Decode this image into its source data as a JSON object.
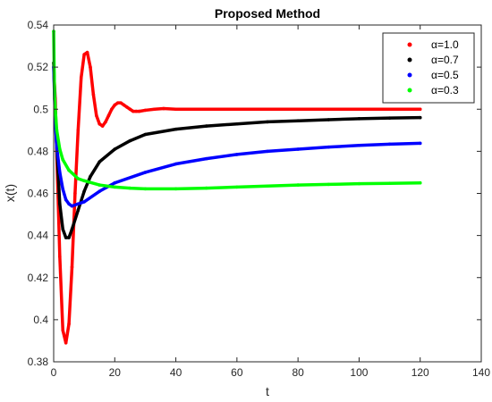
{
  "chart_data": {
    "type": "line",
    "title": "Proposed Method",
    "xlabel": "t",
    "ylabel": "x(t)",
    "xlim": [
      0,
      140
    ],
    "ylim": [
      0.38,
      0.54
    ],
    "xticks": [
      0,
      20,
      40,
      60,
      80,
      100,
      120,
      140
    ],
    "yticks": [
      0.38,
      0.4,
      0.42,
      0.44,
      0.46,
      0.48,
      0.5,
      0.52,
      0.54
    ],
    "xtick_labels": [
      "0",
      "20",
      "40",
      "60",
      "80",
      "100",
      "120",
      "140"
    ],
    "ytick_labels": [
      "0.38",
      "0.4",
      "0.42",
      "0.44",
      "0.46",
      "0.48",
      "0.5",
      "0.52",
      "0.54"
    ],
    "grid": false,
    "legend_position": "top-right",
    "series": [
      {
        "name": "α=1.0",
        "color": "#ff0000",
        "points": [
          [
            0,
            0.52
          ],
          [
            0.5,
            0.505
          ],
          [
            1,
            0.48
          ],
          [
            2,
            0.43
          ],
          [
            3,
            0.395
          ],
          [
            4,
            0.389
          ],
          [
            5,
            0.398
          ],
          [
            6,
            0.425
          ],
          [
            7,
            0.46
          ],
          [
            8,
            0.49
          ],
          [
            9,
            0.515
          ],
          [
            10,
            0.526
          ],
          [
            11,
            0.527
          ],
          [
            12,
            0.52
          ],
          [
            13,
            0.507
          ],
          [
            14,
            0.497
          ],
          [
            15,
            0.493
          ],
          [
            16,
            0.492
          ],
          [
            17,
            0.494
          ],
          [
            18,
            0.497
          ],
          [
            19,
            0.5
          ],
          [
            20,
            0.502
          ],
          [
            21,
            0.503
          ],
          [
            22,
            0.503
          ],
          [
            23,
            0.502
          ],
          [
            24,
            0.501
          ],
          [
            25,
            0.5
          ],
          [
            26,
            0.499
          ],
          [
            27,
            0.499
          ],
          [
            28,
            0.499
          ],
          [
            30,
            0.4995
          ],
          [
            33,
            0.5
          ],
          [
            36,
            0.5003
          ],
          [
            40,
            0.5
          ],
          [
            60,
            0.5
          ],
          [
            80,
            0.5
          ],
          [
            100,
            0.5
          ],
          [
            120,
            0.5
          ]
        ]
      },
      {
        "name": "α=0.7",
        "color": "#000000",
        "points": [
          [
            0,
            0.522
          ],
          [
            0.5,
            0.5
          ],
          [
            1,
            0.482
          ],
          [
            2,
            0.455
          ],
          [
            3,
            0.443
          ],
          [
            4,
            0.439
          ],
          [
            5,
            0.439
          ],
          [
            6,
            0.443
          ],
          [
            8,
            0.452
          ],
          [
            10,
            0.461
          ],
          [
            12,
            0.468
          ],
          [
            15,
            0.475
          ],
          [
            20,
            0.481
          ],
          [
            25,
            0.485
          ],
          [
            30,
            0.488
          ],
          [
            40,
            0.4905
          ],
          [
            50,
            0.492
          ],
          [
            60,
            0.493
          ],
          [
            70,
            0.494
          ],
          [
            80,
            0.4945
          ],
          [
            90,
            0.495
          ],
          [
            100,
            0.4955
          ],
          [
            110,
            0.4958
          ],
          [
            120,
            0.496
          ]
        ]
      },
      {
        "name": "α=0.5",
        "color": "#0000ff",
        "points": [
          [
            0,
            0.52
          ],
          [
            0.5,
            0.495
          ],
          [
            1,
            0.482
          ],
          [
            2,
            0.47
          ],
          [
            3,
            0.462
          ],
          [
            4,
            0.457
          ],
          [
            5,
            0.455
          ],
          [
            6,
            0.454
          ],
          [
            8,
            0.455
          ],
          [
            10,
            0.456
          ],
          [
            15,
            0.461
          ],
          [
            20,
            0.465
          ],
          [
            30,
            0.47
          ],
          [
            40,
            0.474
          ],
          [
            50,
            0.4765
          ],
          [
            60,
            0.4785
          ],
          [
            70,
            0.48
          ],
          [
            80,
            0.481
          ],
          [
            90,
            0.482
          ],
          [
            100,
            0.4828
          ],
          [
            110,
            0.4834
          ],
          [
            120,
            0.4838
          ]
        ]
      },
      {
        "name": "α=0.3",
        "color": "#00ff00",
        "points": [
          [
            0,
            0.537
          ],
          [
            0.3,
            0.505
          ],
          [
            1,
            0.49
          ],
          [
            2,
            0.481
          ],
          [
            3,
            0.476
          ],
          [
            5,
            0.471
          ],
          [
            8,
            0.467
          ],
          [
            10,
            0.466
          ],
          [
            15,
            0.464
          ],
          [
            20,
            0.463
          ],
          [
            25,
            0.4625
          ],
          [
            30,
            0.4622
          ],
          [
            40,
            0.4622
          ],
          [
            50,
            0.4625
          ],
          [
            60,
            0.463
          ],
          [
            70,
            0.4635
          ],
          [
            80,
            0.464
          ],
          [
            90,
            0.4643
          ],
          [
            100,
            0.4646
          ],
          [
            110,
            0.4648
          ],
          [
            120,
            0.465
          ]
        ]
      }
    ]
  }
}
